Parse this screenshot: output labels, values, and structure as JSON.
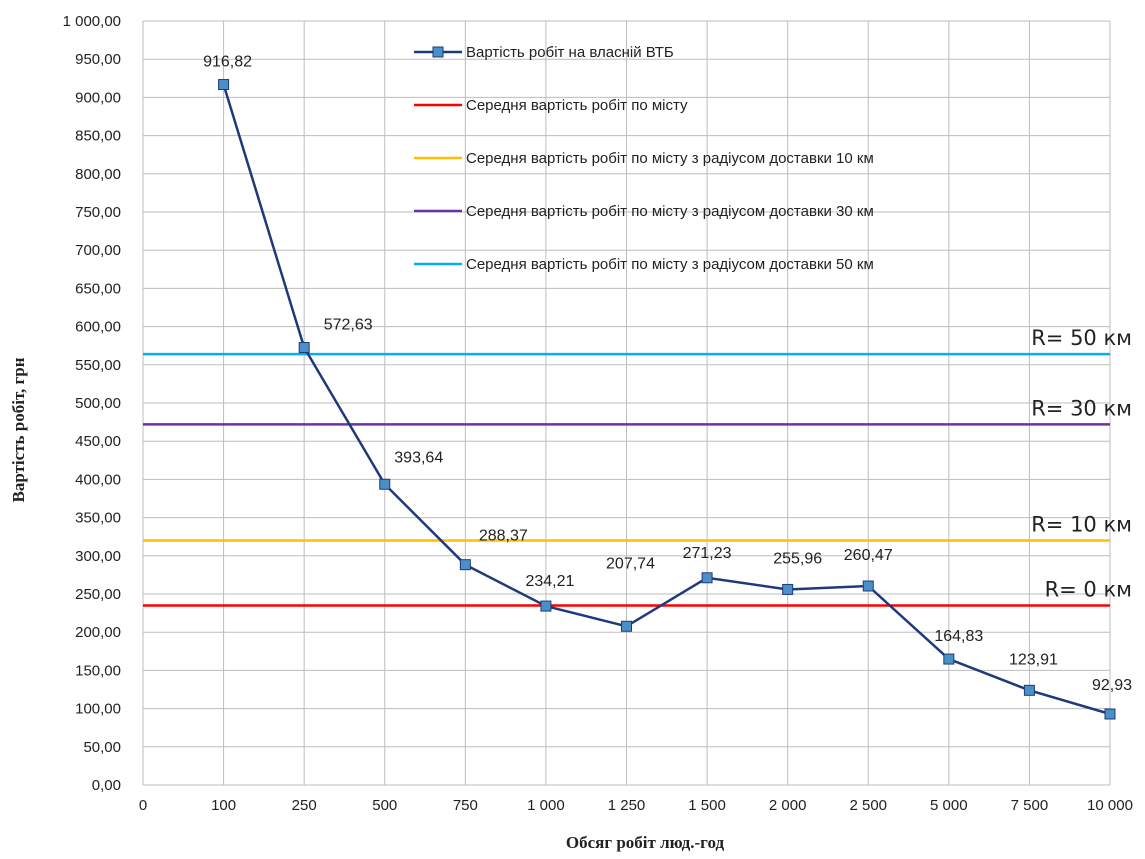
{
  "chart_data": {
    "type": "line",
    "xlabel": "Обсяг робіт люд.-год",
    "ylabel": "Вартість робіт, грн",
    "categories": [
      "0",
      "100",
      "250",
      "500",
      "750",
      "1 000",
      "1 250",
      "1 500",
      "2 000",
      "2 500",
      "5 000",
      "7 500",
      "10 000"
    ],
    "ylim": [
      0,
      1000
    ],
    "yticks": [
      "0,00",
      "50,00",
      "100,00",
      "150,00",
      "200,00",
      "250,00",
      "300,00",
      "350,00",
      "400,00",
      "450,00",
      "500,00",
      "550,00",
      "600,00",
      "650,00",
      "700,00",
      "750,00",
      "800,00",
      "850,00",
      "900,00",
      "950,00",
      "1 000,00"
    ],
    "grid": true,
    "legend_position": "top-right",
    "series": [
      {
        "name": "Вартість робіт на власній ВТБ",
        "color": "#1f3a7a",
        "marker_color": "#4a90c8",
        "x": [
          "100",
          "250",
          "500",
          "750",
          "1 000",
          "1 250",
          "1 500",
          "2 000",
          "2 500",
          "5 000",
          "7 500",
          "10 000"
        ],
        "values": [
          916.82,
          572.63,
          393.64,
          288.37,
          234.21,
          207.74,
          271.23,
          255.96,
          260.47,
          164.83,
          123.91,
          92.93
        ],
        "labels": [
          "916,82",
          "572,63",
          "393,64",
          "288,37",
          "234,21",
          "207,74",
          "271,23",
          "255,96",
          "260,47",
          "164,83",
          "123,91",
          "92,93"
        ]
      },
      {
        "name": "Середня вартість робіт по місту",
        "color": "#ff0000",
        "value": 235
      },
      {
        "name": "Середня вартість робіт по місту з радіусом доставки 10 км",
        "color": "#ffc000",
        "value": 320
      },
      {
        "name": "Середня вартість робіт по місту з радіусом доставки 30 км",
        "color": "#7030a0",
        "value": 472
      },
      {
        "name": "Середня вартість робіт по місту з радіусом доставки 50 км",
        "color": "#00b0f0",
        "value": 564
      }
    ],
    "annotations": [
      {
        "text": "R= 50 км",
        "value": 564
      },
      {
        "text": "R= 30 км",
        "value": 472
      },
      {
        "text": "R= 10 км",
        "value": 320
      },
      {
        "text": "R= 0 км",
        "value": 235
      }
    ]
  }
}
